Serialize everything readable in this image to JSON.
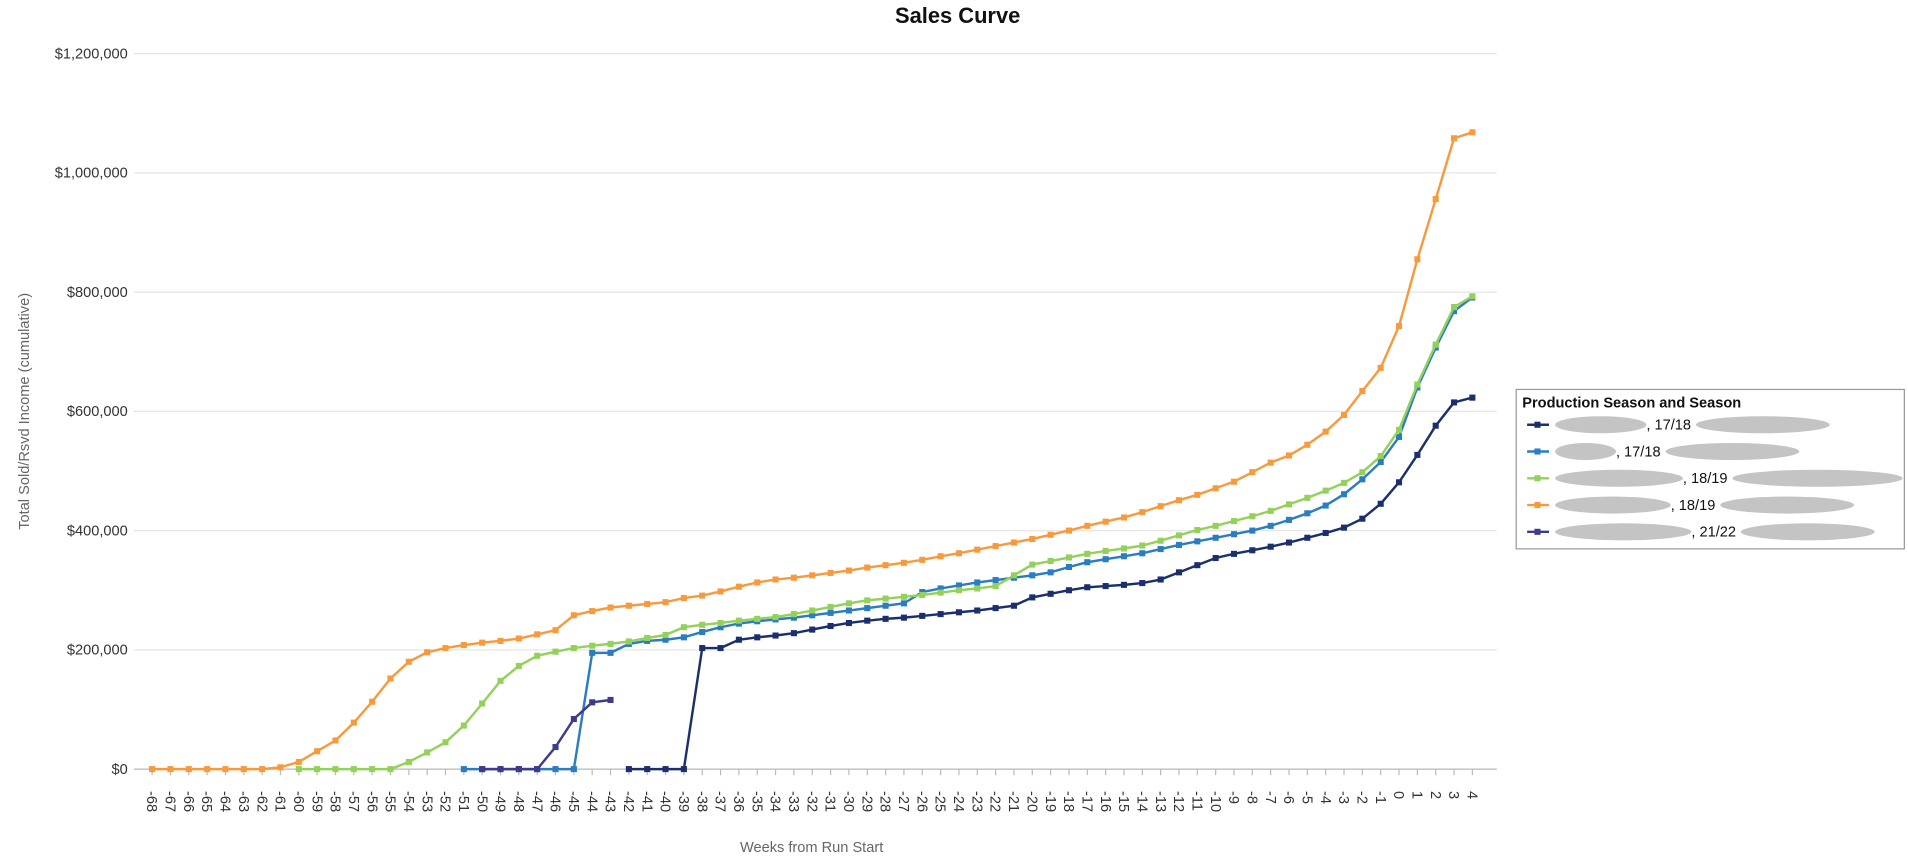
{
  "chart_data": {
    "type": "line",
    "title": "Sales Curve",
    "x_label": "Weeks from Run Start",
    "y_label": "Total Sold/Rsvd Income (cumulative)",
    "legend_title": "Production Season and Season",
    "legend": "right",
    "grid": true,
    "categories": [
      -68,
      -67,
      -66,
      -65,
      -64,
      -63,
      -62,
      -61,
      -60,
      -59,
      -58,
      -57,
      -56,
      -55,
      -54,
      -53,
      -52,
      -51,
      -50,
      -49,
      -48,
      -47,
      -46,
      -45,
      -44,
      -43,
      -42,
      -41,
      -40,
      -39,
      -38,
      -37,
      -36,
      -35,
      -34,
      -33,
      -32,
      -31,
      -30,
      -29,
      -28,
      -27,
      -26,
      -25,
      -24,
      -23,
      -22,
      -21,
      -20,
      -19,
      -18,
      -17,
      -16,
      -15,
      -14,
      -13,
      -12,
      -11,
      -10,
      -9,
      -8,
      -7,
      -6,
      -5,
      -4,
      -3,
      -2,
      -1,
      0,
      1,
      2,
      3,
      4
    ],
    "ylim": [
      0,
      1200000
    ],
    "yticks": [
      {
        "value": 0,
        "label": "$0"
      },
      {
        "value": 200000,
        "label": "$200,000"
      },
      {
        "value": 400000,
        "label": "$400,000"
      },
      {
        "value": 600000,
        "label": "$600,000"
      },
      {
        "value": 800000,
        "label": "$800,000"
      },
      {
        "value": 1000000,
        "label": "$1,000,000"
      },
      {
        "value": 1200000,
        "label": "$1,200,000"
      }
    ],
    "series": [
      {
        "name": ", 17/18",
        "color": "#1b2f6e",
        "values": [
          null,
          null,
          null,
          null,
          null,
          null,
          null,
          null,
          null,
          null,
          null,
          null,
          null,
          null,
          null,
          null,
          null,
          null,
          null,
          null,
          null,
          null,
          null,
          null,
          null,
          null,
          0,
          0,
          0,
          0,
          203000,
          203000,
          217000,
          221000,
          224000,
          228000,
          234000,
          240000,
          245000,
          249000,
          252000,
          254000,
          257000,
          260000,
          263000,
          266000,
          270000,
          274000,
          288000,
          294000,
          300000,
          305000,
          307000,
          309000,
          312000,
          318000,
          330000,
          342000,
          354000,
          361000,
          367000,
          373000,
          380000,
          388000,
          396000,
          405000,
          420000,
          445000,
          481000,
          527000,
          576000,
          615000,
          623000
        ]
      },
      {
        "name": ", 17/18",
        "color": "#2a7dc0",
        "values": [
          null,
          null,
          null,
          null,
          null,
          null,
          null,
          null,
          null,
          null,
          null,
          null,
          null,
          null,
          null,
          null,
          null,
          0,
          0,
          0,
          0,
          0,
          0,
          0,
          195000,
          195000,
          210000,
          215000,
          217000,
          221000,
          230000,
          238000,
          244000,
          248000,
          251000,
          254000,
          258000,
          262000,
          266000,
          270000,
          274000,
          278000,
          297000,
          303000,
          308000,
          313000,
          317000,
          321000,
          325000,
          330000,
          339000,
          347000,
          352000,
          357000,
          362000,
          369000,
          376000,
          382000,
          388000,
          394000,
          400000,
          408000,
          418000,
          429000,
          442000,
          461000,
          486000,
          515000,
          557000,
          640000,
          707000,
          768000,
          791000
        ]
      },
      {
        "name": ", 18/19",
        "color": "#93d15a",
        "values": [
          null,
          null,
          null,
          null,
          null,
          null,
          null,
          null,
          0,
          0,
          0,
          0,
          0,
          0,
          12000,
          28000,
          45000,
          73000,
          110000,
          148000,
          173000,
          190000,
          197000,
          203000,
          207000,
          210000,
          214000,
          220000,
          225000,
          238000,
          242000,
          245000,
          249000,
          252000,
          255000,
          260000,
          266000,
          272000,
          278000,
          283000,
          286000,
          289000,
          292000,
          296000,
          300000,
          303000,
          307000,
          325000,
          343000,
          349000,
          355000,
          361000,
          366000,
          370000,
          375000,
          383000,
          392000,
          401000,
          408000,
          416000,
          424000,
          433000,
          444000,
          455000,
          467000,
          480000,
          498000,
          525000,
          569000,
          645000,
          712000,
          775000,
          793000
        ]
      },
      {
        "name": ", 18/19",
        "color": "#f79a3e",
        "values": [
          0,
          0,
          0,
          0,
          0,
          0,
          0,
          3000,
          12000,
          30000,
          48000,
          78000,
          113000,
          152000,
          180000,
          196000,
          203000,
          208000,
          212000,
          215000,
          219000,
          226000,
          233000,
          258000,
          265000,
          271000,
          274000,
          277000,
          280000,
          287000,
          291000,
          298000,
          306000,
          313000,
          318000,
          321000,
          325000,
          329000,
          333000,
          338000,
          342000,
          346000,
          351000,
          357000,
          362000,
          368000,
          374000,
          380000,
          386000,
          393000,
          400000,
          408000,
          415000,
          422000,
          431000,
          441000,
          451000,
          460000,
          471000,
          482000,
          498000,
          514000,
          526000,
          544000,
          566000,
          594000,
          634000,
          673000,
          743000,
          855000,
          956000,
          1058000,
          1068000
        ]
      },
      {
        "name": ", 21/22",
        "color": "#3e3b8e",
        "values": [
          null,
          null,
          null,
          null,
          null,
          null,
          null,
          null,
          null,
          null,
          null,
          null,
          null,
          null,
          null,
          null,
          null,
          null,
          0,
          0,
          0,
          0,
          37000,
          84000,
          112000,
          116000,
          null,
          null,
          null,
          null,
          null,
          null,
          null,
          null,
          null,
          null,
          null,
          null,
          null,
          null,
          null,
          null,
          null,
          null,
          null,
          null,
          null,
          null,
          null,
          null,
          null,
          null,
          null,
          null,
          null,
          null,
          null,
          null,
          null,
          null,
          null,
          null,
          null,
          null,
          null,
          null,
          null,
          null,
          null,
          null,
          null,
          null,
          null
        ]
      }
    ]
  }
}
